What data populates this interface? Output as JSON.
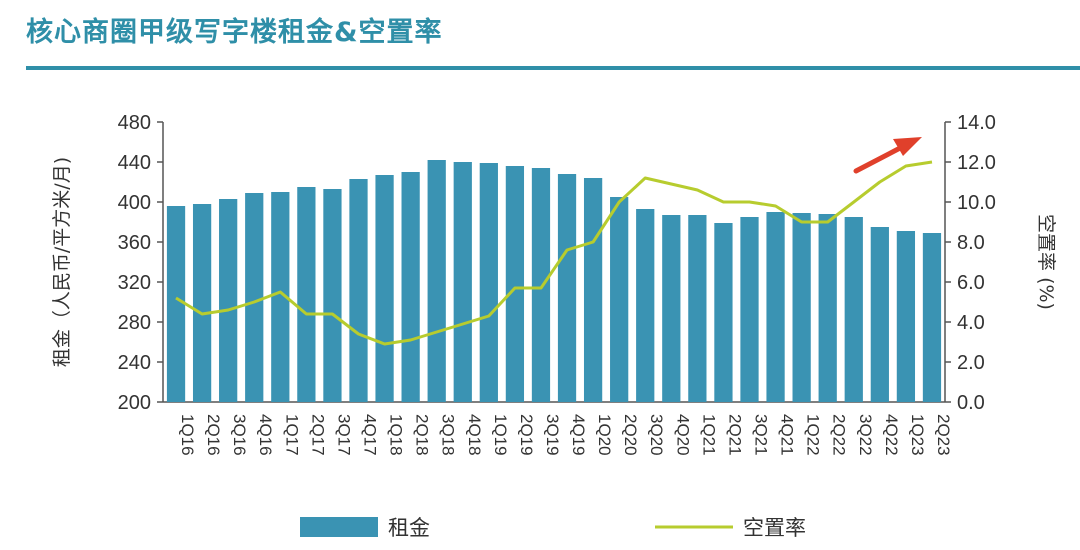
{
  "title": "核心商圈甲级写字楼租金&空置率",
  "colors": {
    "title": "#2f8fa8",
    "bar": "#3a93b3",
    "line": "#b7cc2e",
    "arrow": "#e0402b",
    "axis": "#555555"
  },
  "icons": {
    "trend_arrow": "red-arrow-icon"
  },
  "chart_data": {
    "type": "bar",
    "categories": [
      "1Q16",
      "2Q16",
      "3Q16",
      "4Q16",
      "1Q17",
      "2Q17",
      "3Q17",
      "4Q17",
      "1Q18",
      "2Q18",
      "3Q18",
      "4Q18",
      "1Q19",
      "2Q19",
      "3Q19",
      "4Q19",
      "1Q20",
      "2Q20",
      "3Q20",
      "4Q20",
      "1Q21",
      "2Q21",
      "3Q21",
      "4Q21",
      "1Q22",
      "2Q22",
      "3Q22",
      "4Q22",
      "1Q23",
      "2Q23"
    ],
    "series": [
      {
        "name": "租金",
        "type": "bar",
        "axis": "left",
        "values": [
          396,
          398,
          403,
          409,
          410,
          415,
          413,
          423,
          427,
          430,
          442,
          440,
          439,
          436,
          434,
          428,
          424,
          405,
          393,
          387,
          387,
          379,
          385,
          390,
          389,
          388,
          385,
          375,
          371,
          369
        ]
      },
      {
        "name": "空置率",
        "type": "line",
        "axis": "right",
        "values": [
          5.2,
          4.4,
          4.6,
          5.0,
          5.5,
          4.4,
          4.4,
          3.4,
          2.9,
          3.1,
          3.5,
          3.9,
          4.3,
          5.7,
          5.7,
          7.6,
          8.0,
          10.0,
          11.2,
          10.9,
          10.6,
          10.0,
          10.0,
          9.8,
          9.0,
          9.0,
          10.0,
          11.0,
          11.8,
          12.0
        ]
      }
    ],
    "ylabel": "租金（人民币/平方米/月)",
    "ylim": [
      200,
      480
    ],
    "yticks": [
      "200",
      "240",
      "280",
      "320",
      "360",
      "400",
      "440",
      "480"
    ],
    "y2label": "空置率 (%)",
    "y2lim": [
      0,
      14
    ],
    "y2ticks": [
      "0.0",
      "2.0",
      "4.0",
      "6.0",
      "8.0",
      "10.0",
      "12.0",
      "14.0"
    ],
    "legend": {
      "position": "bottom",
      "items": [
        "租金",
        "空置率"
      ]
    },
    "grid": false
  }
}
